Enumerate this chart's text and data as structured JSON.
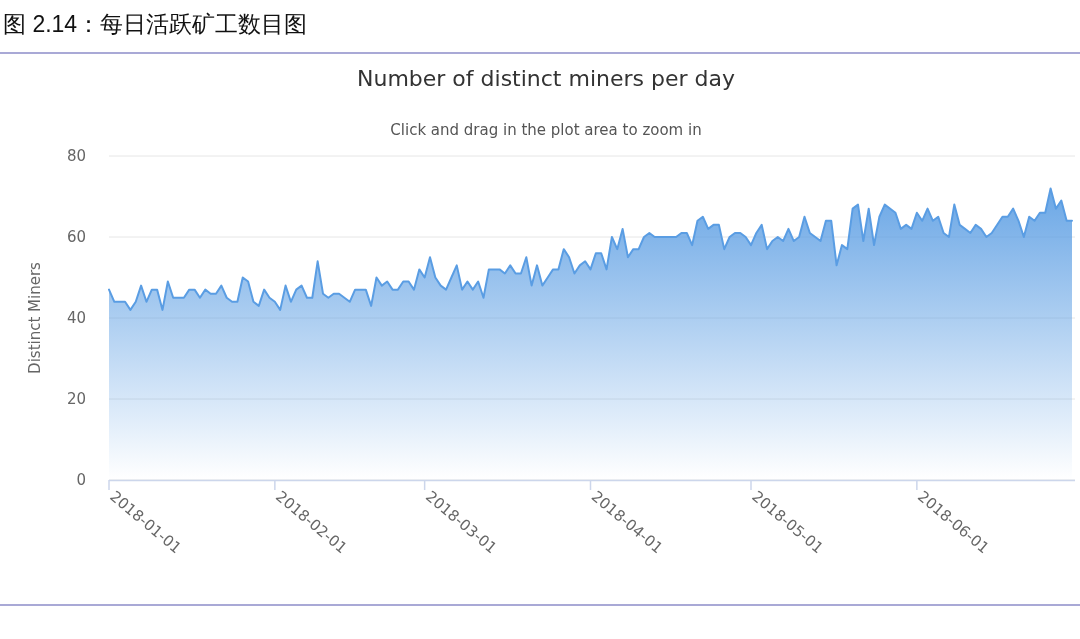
{
  "chart_data": {
    "type": "area",
    "title": "Number of distinct miners per day",
    "subtitle": "Click and drag in the plot area to zoom in",
    "ylabel": "Distinct Miners",
    "annotations": [
      "图 2.14：每日活跃矿工数目图"
    ],
    "x": [
      "2018-01-01",
      "2018-01-02",
      "2018-01-03",
      "2018-01-04",
      "2018-01-05",
      "2018-01-06",
      "2018-01-07",
      "2018-01-08",
      "2018-01-09",
      "2018-01-10",
      "2018-01-11",
      "2018-01-12",
      "2018-01-13",
      "2018-01-15",
      "2018-01-16",
      "2018-01-17",
      "2018-01-18",
      "2018-01-19",
      "2018-01-20",
      "2018-01-21",
      "2018-01-22",
      "2018-01-23",
      "2018-01-24",
      "2018-01-25",
      "2018-01-26",
      "2018-01-27",
      "2018-01-28",
      "2018-01-29",
      "2018-01-30",
      "2018-01-31",
      "2018-02-01",
      "2018-02-02",
      "2018-02-03",
      "2018-02-04",
      "2018-02-05",
      "2018-02-06",
      "2018-02-07",
      "2018-02-08",
      "2018-02-09",
      "2018-02-10",
      "2018-02-11",
      "2018-02-12",
      "2018-02-13",
      "2018-02-15",
      "2018-02-16",
      "2018-02-17",
      "2018-02-18",
      "2018-02-19",
      "2018-02-20",
      "2018-02-21",
      "2018-02-22",
      "2018-02-23",
      "2018-02-24",
      "2018-02-25",
      "2018-02-26",
      "2018-02-27",
      "2018-02-28",
      "2018-03-01",
      "2018-03-02",
      "2018-03-03",
      "2018-03-04",
      "2018-03-05",
      "2018-03-06",
      "2018-03-07",
      "2018-03-08",
      "2018-03-09",
      "2018-03-10",
      "2018-03-11",
      "2018-03-12",
      "2018-03-13",
      "2018-03-15",
      "2018-03-16",
      "2018-03-17",
      "2018-03-18",
      "2018-03-19",
      "2018-03-20",
      "2018-03-21",
      "2018-03-22",
      "2018-03-23",
      "2018-03-24",
      "2018-03-25",
      "2018-03-26",
      "2018-03-27",
      "2018-03-28",
      "2018-03-29",
      "2018-03-30",
      "2018-03-31",
      "2018-04-01",
      "2018-04-02",
      "2018-04-03",
      "2018-04-04",
      "2018-04-05",
      "2018-04-06",
      "2018-04-07",
      "2018-04-08",
      "2018-04-09",
      "2018-04-10",
      "2018-04-11",
      "2018-04-12",
      "2018-04-13",
      "2018-04-14",
      "2018-04-16",
      "2018-04-17",
      "2018-04-18",
      "2018-04-19",
      "2018-04-20",
      "2018-04-21",
      "2018-04-22",
      "2018-04-23",
      "2018-04-24",
      "2018-04-25",
      "2018-04-26",
      "2018-04-27",
      "2018-04-28",
      "2018-04-29",
      "2018-04-30",
      "2018-05-01",
      "2018-05-02",
      "2018-05-03",
      "2018-05-04",
      "2018-05-05",
      "2018-05-06",
      "2018-05-07",
      "2018-05-08",
      "2018-05-09",
      "2018-05-10",
      "2018-05-11",
      "2018-05-12",
      "2018-05-13",
      "2018-05-14",
      "2018-05-15",
      "2018-05-16",
      "2018-05-17",
      "2018-05-18",
      "2018-05-19",
      "2018-05-20",
      "2018-05-21",
      "2018-05-22",
      "2018-05-23",
      "2018-05-24",
      "2018-05-25",
      "2018-05-26",
      "2018-05-28",
      "2018-05-29",
      "2018-05-30",
      "2018-05-31",
      "2018-06-01",
      "2018-06-02",
      "2018-06-03",
      "2018-06-04",
      "2018-06-05",
      "2018-06-06",
      "2018-06-07",
      "2018-06-08",
      "2018-06-09",
      "2018-06-10",
      "2018-06-11",
      "2018-06-12",
      "2018-06-13",
      "2018-06-14",
      "2018-06-15",
      "2018-06-17",
      "2018-06-18",
      "2018-06-19",
      "2018-06-20",
      "2018-06-21",
      "2018-06-22",
      "2018-06-23",
      "2018-06-24",
      "2018-06-25",
      "2018-06-26",
      "2018-06-27",
      "2018-06-28",
      "2018-06-29",
      "2018-06-30"
    ],
    "series": [
      {
        "color": "#5a9de3",
        "values": [
          47,
          44,
          44,
          44,
          42,
          44,
          48,
          44,
          47,
          47,
          42,
          49,
          45,
          45,
          47,
          47,
          45,
          47,
          46,
          46,
          48,
          45,
          44,
          44,
          50,
          49,
          44,
          43,
          47,
          45,
          44,
          42,
          48,
          44,
          47,
          48,
          45,
          45,
          54,
          46,
          45,
          46,
          46,
          44,
          47,
          47,
          47,
          43,
          50,
          48,
          49,
          47,
          47,
          49,
          49,
          47,
          52,
          50,
          55,
          50,
          48,
          47,
          50,
          53,
          47,
          49,
          47,
          49,
          45,
          52,
          52,
          51,
          53,
          51,
          51,
          55,
          48,
          53,
          48,
          50,
          52,
          52,
          57,
          55,
          51,
          53,
          54,
          52,
          56,
          56,
          52,
          60,
          57,
          62,
          55,
          57,
          57,
          60,
          61,
          60,
          60,
          60,
          60,
          61,
          61,
          58,
          64,
          65,
          62,
          63,
          63,
          57,
          60,
          61,
          61,
          60,
          58,
          61,
          63,
          57,
          59,
          60,
          59,
          62,
          59,
          60,
          65,
          61,
          60,
          59,
          64,
          64,
          53,
          58,
          57,
          67,
          68,
          59,
          67,
          58,
          65,
          68,
          66,
          62,
          63,
          62,
          66,
          64,
          67,
          64,
          65,
          61,
          60,
          68,
          63,
          62,
          61,
          63,
          62,
          60,
          61,
          65,
          65,
          67,
          64,
          60,
          65,
          64,
          66,
          66,
          72,
          67,
          69,
          64,
          64
        ]
      }
    ],
    "xlim": [
      "2018-01-01",
      "2018-06-30"
    ],
    "xticks": [
      "2018-01-01",
      "2018-02-01",
      "2018-03-01",
      "2018-04-01",
      "2018-05-01",
      "2018-06-01"
    ],
    "ylim": [
      0,
      80
    ],
    "yticks": [
      0,
      20,
      40,
      60,
      80
    ],
    "grid": "y"
  }
}
